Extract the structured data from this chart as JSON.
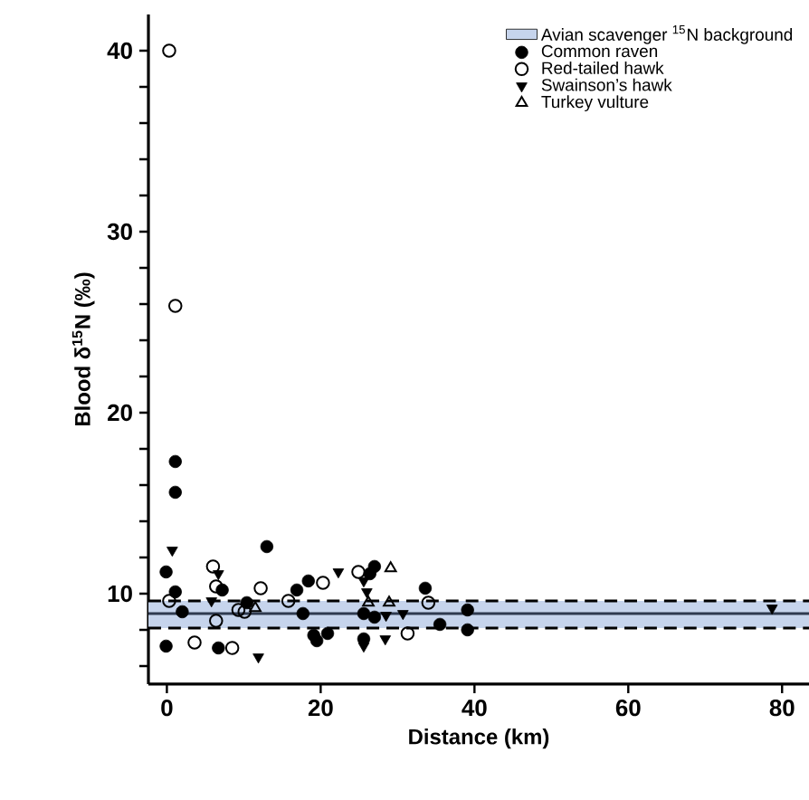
{
  "chart_data": {
    "type": "scatter",
    "xlabel": "Distance (km)",
    "ylabel": "Blood δ$^{15}$N (‰)",
    "xlim": [
      -2.4,
      83.5
    ],
    "ylim": [
      5,
      42
    ],
    "xticks": [
      0,
      20,
      40,
      60,
      80
    ],
    "yticks": [
      {
        "value": 6,
        "label": null
      },
      {
        "value": 8,
        "label": null
      },
      10,
      {
        "value": 12,
        "label": null
      },
      {
        "value": 14,
        "label": null
      },
      {
        "value": 16,
        "label": null
      },
      {
        "value": 18,
        "label": null
      },
      20,
      {
        "value": 22,
        "label": null
      },
      {
        "value": 24,
        "label": null
      },
      {
        "value": 26,
        "label": null
      },
      {
        "value": 28,
        "label": null
      },
      30,
      {
        "value": 32,
        "label": null
      },
      {
        "value": 34,
        "label": null
      },
      {
        "value": 36,
        "label": null
      },
      {
        "value": 38,
        "label": null
      },
      40
    ],
    "legend": "top right",
    "grid": false,
    "bands": [
      {
        "axis": "y",
        "from": 8.1,
        "to": 9.6,
        "label": "Avian scavenger $^{15}$N background",
        "color": "#c6d4ec"
      }
    ],
    "ref_lines": [
      {
        "axis": "y",
        "value": 8.9,
        "color": "#2f3a4f",
        "line_style": "solid"
      },
      {
        "axis": "y",
        "value": 8.1,
        "color": "#000000",
        "line_style": "dashed"
      },
      {
        "axis": "y",
        "value": 9.6,
        "color": "#000000",
        "line_style": "dashed"
      }
    ],
    "series": [
      {
        "name": "Common raven",
        "color": "#000000",
        "marker": "circle",
        "x": [
          1.1,
          1.1,
          13.0,
          -0.1,
          1.1,
          2.0,
          -0.1,
          7.2,
          6.7,
          10.4,
          16.9,
          17.7,
          18.4,
          19.1,
          19.5,
          20.9,
          27.0,
          26.4,
          25.6,
          27.0,
          25.6,
          33.6,
          35.5,
          39.1,
          39.1
        ],
        "values": [
          17.3,
          15.6,
          12.6,
          11.2,
          10.1,
          9.0,
          7.1,
          10.2,
          7.0,
          9.5,
          10.2,
          8.9,
          10.7,
          7.7,
          7.4,
          7.8,
          11.5,
          11.1,
          8.9,
          8.7,
          7.5,
          10.3,
          8.3,
          9.1,
          8.0
        ]
      },
      {
        "name": "Red-tailed hawk",
        "color": "#000000",
        "marker": "circle",
        "x": [
          0.3,
          1.1,
          0.3,
          3.6,
          6.0,
          6.4,
          6.4,
          8.5,
          9.3,
          10.1,
          12.2,
          15.8,
          20.3,
          24.9,
          31.3,
          34.0
        ],
        "values": [
          40,
          25.9,
          9.6,
          7.3,
          11.5,
          10.4,
          8.5,
          7.0,
          9.1,
          9.0,
          10.3,
          9.6,
          10.6,
          11.2,
          7.8,
          9.5
        ]
      },
      {
        "name": "Swainson’s hawk",
        "color": "#000000",
        "marker": "triangle",
        "x": [
          0.7,
          6.7,
          5.8,
          11.9,
          22.3,
          25.6,
          26.0,
          28.5,
          30.7,
          25.6,
          28.4,
          78.7
        ],
        "values": [
          12.4,
          11.1,
          9.6,
          6.5,
          11.2,
          10.7,
          10.1,
          8.8,
          8.9,
          7.1,
          7.5,
          9.2
        ]
      },
      {
        "name": "Turkey vulture",
        "color": "#000000",
        "marker": "triangle",
        "x": [
          11.5,
          29.1,
          26.2,
          28.9
        ],
        "values": [
          9.2,
          11.4,
          9.5,
          9.5
        ]
      }
    ]
  }
}
